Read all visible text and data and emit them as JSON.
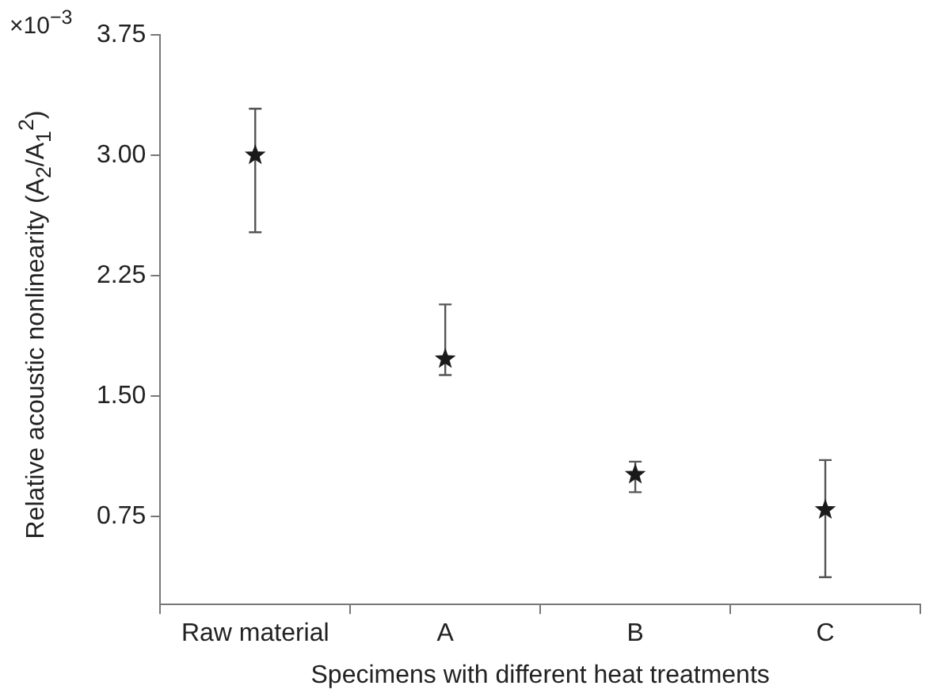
{
  "chart_data": {
    "type": "scatter",
    "xlabel": "Specimens with different heat treatments",
    "ylabel": "Relative acoustic nonlinearity (A$_{2}$/A$_{1}$$^{2}$)",
    "annotations": [
      "×10$^{−3}$"
    ],
    "categories": [
      "Raw material",
      "A",
      "B",
      "C"
    ],
    "series": [
      {
        "color": "#1a1a1a",
        "values": [
          3.0,
          1.73,
          1.01,
          0.79
        ],
        "errors": [
          [
            2.52,
            3.29
          ],
          [
            1.63,
            2.07
          ],
          [
            0.9,
            1.09
          ],
          [
            0.37,
            1.1
          ]
        ]
      }
    ],
    "ylim": [
      0.2,
      3.75
    ],
    "yticks": [
      {
        "value": 0.75,
        "label": "0.75"
      },
      {
        "value": 1.5,
        "label": "1.50"
      },
      {
        "value": 2.25,
        "label": "2.25"
      },
      {
        "value": 3,
        "label": "3.00"
      },
      {
        "value": 3.75,
        "label": "3.75"
      }
    ],
    "marker": "star",
    "grid": false,
    "legend": false
  }
}
